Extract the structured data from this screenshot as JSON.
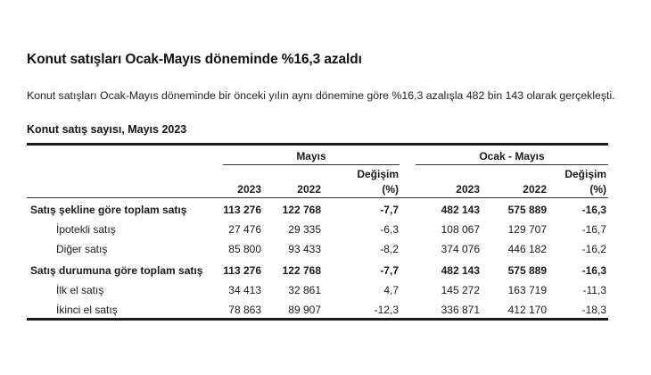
{
  "headline": "Konut satışları Ocak-Mayıs döneminde %16,3 azaldı",
  "summary": "Konut satışları Ocak-Mayıs döneminde bir önceki yılın aynı dönemine göre %16,3 azalışla 482 bin 143 olarak gerçekleşti.",
  "table": {
    "title": "Konut satış sayısı, Mayıs 2023",
    "groups": [
      {
        "label": "Mayıs"
      },
      {
        "label": "Ocak - Mayıs"
      }
    ],
    "columns": {
      "year_current": "2023",
      "year_previous": "2022",
      "change_line1": "Değişim",
      "change_line2": "(%)"
    },
    "rows": [
      {
        "label": "Satış şekline göre toplam satış",
        "bold": true,
        "may_2023": "113 276",
        "may_2022": "122 768",
        "may_change": "-7,7",
        "ytd_2023": "482 143",
        "ytd_2022": "575 889",
        "ytd_change": "-16,3"
      },
      {
        "label": "İpotekli satış",
        "bold": false,
        "may_2023": "27 476",
        "may_2022": "29 335",
        "may_change": "-6,3",
        "ytd_2023": "108 067",
        "ytd_2022": "129 707",
        "ytd_change": "-16,7"
      },
      {
        "label": "Diğer satış",
        "bold": false,
        "may_2023": "85 800",
        "may_2022": "93 433",
        "may_change": "-8,2",
        "ytd_2023": "374 076",
        "ytd_2022": "446 182",
        "ytd_change": "-16,2"
      },
      {
        "label": "Satış durumuna göre toplam satış",
        "bold": true,
        "may_2023": "113 276",
        "may_2022": "122 768",
        "may_change": "-7,7",
        "ytd_2023": "482 143",
        "ytd_2022": "575 889",
        "ytd_change": "-16,3"
      },
      {
        "label": "İlk el satış",
        "bold": false,
        "may_2023": "34 413",
        "may_2022": "32 861",
        "may_change": "4,7",
        "ytd_2023": "145 272",
        "ytd_2022": "163 719",
        "ytd_change": "-11,3"
      },
      {
        "label": "İkinci el satış",
        "bold": false,
        "may_2023": "78 863",
        "may_2022": "89 907",
        "may_change": "-12,3",
        "ytd_2023": "336 871",
        "ytd_2022": "412 170",
        "ytd_change": "-18,3"
      }
    ]
  }
}
